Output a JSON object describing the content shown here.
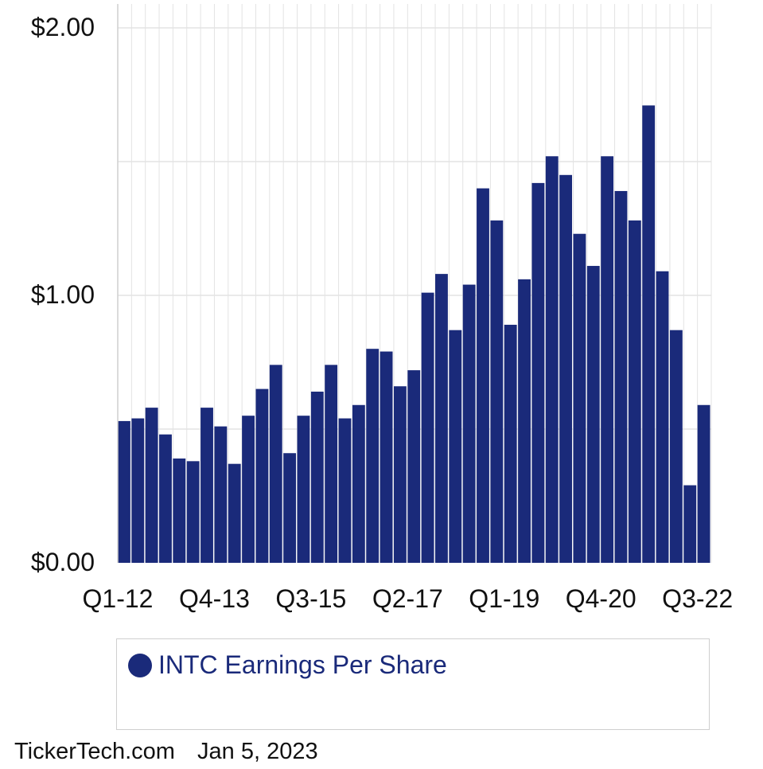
{
  "chart_data": {
    "type": "bar",
    "title": "",
    "xlabel": "",
    "ylabel": "",
    "ylim": [
      0,
      2
    ],
    "yticks": [
      "$0.00",
      "$1.00",
      "$2.00"
    ],
    "xtick_labels": [
      "Q1-12",
      "Q4-13",
      "Q3-15",
      "Q2-17",
      "Q1-19",
      "Q4-20",
      "Q3-22"
    ],
    "grid": true,
    "legend_position": "bottom",
    "bar_color": "#1a2a7a",
    "categories": [
      "Q1-12",
      "Q2-12",
      "Q3-12",
      "Q4-12",
      "Q1-13",
      "Q2-13",
      "Q3-13",
      "Q4-13",
      "Q1-14",
      "Q2-14",
      "Q3-14",
      "Q4-14",
      "Q1-15",
      "Q2-15",
      "Q3-15",
      "Q4-15",
      "Q1-16",
      "Q2-16",
      "Q3-16",
      "Q4-16",
      "Q1-17",
      "Q2-17",
      "Q3-17",
      "Q4-17",
      "Q1-18",
      "Q2-18",
      "Q3-18",
      "Q4-18",
      "Q1-19",
      "Q2-19",
      "Q3-19",
      "Q4-19",
      "Q1-20",
      "Q2-20",
      "Q3-20",
      "Q4-20",
      "Q1-21",
      "Q2-21",
      "Q3-21",
      "Q4-21",
      "Q1-22",
      "Q2-22",
      "Q3-22"
    ],
    "series": [
      {
        "name": "INTC Earnings Per Share",
        "values": [
          0.53,
          0.54,
          0.58,
          0.48,
          0.39,
          0.38,
          0.58,
          0.51,
          0.37,
          0.55,
          0.65,
          0.74,
          0.41,
          0.55,
          0.64,
          0.74,
          0.54,
          0.59,
          0.8,
          0.79,
          0.66,
          0.72,
          1.01,
          1.08,
          0.87,
          1.04,
          1.4,
          1.28,
          0.89,
          1.06,
          1.42,
          1.52,
          1.45,
          1.23,
          1.11,
          1.52,
          1.39,
          1.28,
          1.71,
          1.09,
          0.87,
          0.29,
          0.59
        ]
      }
    ]
  },
  "legend": {
    "label": "INTC Earnings Per Share"
  },
  "footer": {
    "source": "TickerTech.com",
    "date": "Jan 5, 2023"
  }
}
